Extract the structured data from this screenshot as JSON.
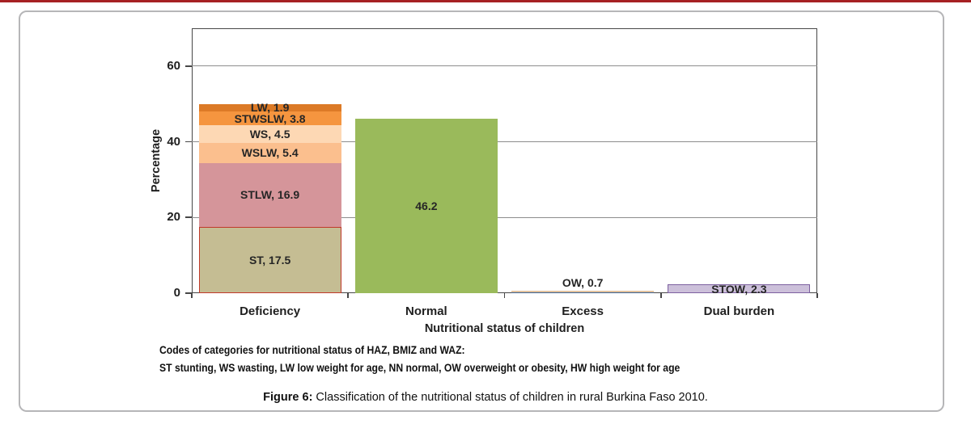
{
  "page": {
    "notes_line1": "Codes of categories for nutritional status of HAZ, BMIZ and WAZ:",
    "notes_line2": "ST stunting, WS wasting, LW low weight for age, NN normal, OW overweight or obesity, HW high weight for age",
    "caption_bold": "Figure 6:",
    "caption_text": " Classification of the nutritional status of children in rural Burkina Faso 2010.",
    "accent_top_line_color": "#a62123"
  },
  "chart_data": {
    "type": "bar",
    "stacked": true,
    "title": "",
    "xlabel": "Nutritional status of children",
    "ylabel": "Percentage",
    "ylim": [
      0,
      70
    ],
    "yticks": [
      0,
      20,
      40,
      60
    ],
    "grid": true,
    "gridline_color": "#8d8d8d",
    "categories": [
      "Deficiency",
      "Normal",
      "Excess",
      "Dual burden"
    ],
    "bars": [
      {
        "category": "Deficiency",
        "total": 50.0,
        "segments": [
          {
            "code": "ST",
            "value": 17.5,
            "label": "ST, 17.5",
            "fill": "#c5bd93",
            "border": "#c0392b",
            "border_width": 1,
            "label_pos": "inside"
          },
          {
            "code": "STLW",
            "value": 16.9,
            "label": "STLW, 16.9",
            "fill": "#d5959a",
            "border": null,
            "border_width": 0,
            "label_pos": "inside"
          },
          {
            "code": "WSLW",
            "value": 5.4,
            "label": "WSLW, 5.4",
            "fill": "#fbbf8e",
            "border": null,
            "border_width": 0,
            "label_pos": "inside"
          },
          {
            "code": "WS",
            "value": 4.5,
            "label": "WS, 4.5",
            "fill": "#fdd8b4",
            "border": null,
            "border_width": 0,
            "label_pos": "inside"
          },
          {
            "code": "STWSLW",
            "value": 3.8,
            "label": "STWSLW, 3.8",
            "fill": "#f5953f",
            "border": null,
            "border_width": 0,
            "label_pos": "inside"
          },
          {
            "code": "LW",
            "value": 1.9,
            "label": "LW, 1.9",
            "fill": "#dc7a26",
            "border": null,
            "border_width": 0,
            "label_pos": "inside"
          }
        ]
      },
      {
        "category": "Normal",
        "total": 46.2,
        "segments": [
          {
            "code": "NN",
            "value": 46.2,
            "label": "46.2",
            "fill": "#9aba5b",
            "border": null,
            "border_width": 0,
            "label_pos": "inside"
          }
        ]
      },
      {
        "category": "Excess",
        "total": 0.7,
        "segments": [
          {
            "code": "OW",
            "value": 0.7,
            "label": "OW, 0.7",
            "fill": "#4e81bc",
            "border": null,
            "border_width": 0,
            "border_top": "#e2c19d",
            "border_bottom": "#3a6293",
            "label_pos": "above"
          }
        ]
      },
      {
        "category": "Dual burden",
        "total": 2.3,
        "segments": [
          {
            "code": "STOW",
            "value": 2.3,
            "label": "STOW, 2.3",
            "fill": "#ccc0da",
            "border": "#7d60a0",
            "border_width": 1.8,
            "label_pos": "inside"
          }
        ]
      }
    ]
  }
}
